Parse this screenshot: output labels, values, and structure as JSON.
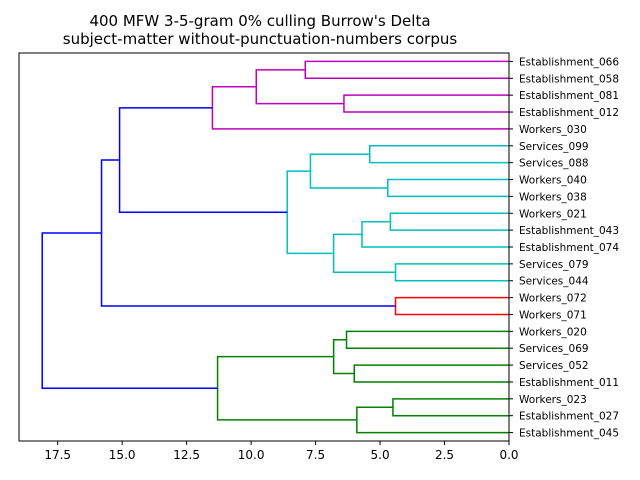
{
  "chart_data": {
    "type": "dendrogram",
    "title": "400 MFW 3-5-gram 0% culling Burrow's Delta",
    "subtitle": "subject-matter without-punctuation-numbers corpus",
    "orientation": "left",
    "xlim": [
      19,
      0
    ],
    "xticks": [
      17.5,
      15.0,
      12.5,
      10.0,
      7.5,
      5.0,
      2.5,
      0.0
    ],
    "xtick_labels": [
      "17.5",
      "15.0",
      "12.5",
      "10.0",
      "7.5",
      "5.0",
      "2.5",
      "0.0"
    ],
    "leaves": [
      "Establishment_066",
      "Establishment_058",
      "Establishment_081",
      "Establishment_012",
      "Workers_030",
      "Services_099",
      "Services_088",
      "Workers_040",
      "Workers_038",
      "Workers_021",
      "Establishment_043",
      "Establishment_074",
      "Services_079",
      "Services_044",
      "Workers_072",
      "Workers_071",
      "Workers_020",
      "Services_069",
      "Services_052",
      "Establishment_011",
      "Workers_023",
      "Establishment_027",
      "Establishment_045"
    ],
    "colors": {
      "magenta": "#bf00bf",
      "cyan": "#00bfbf",
      "red": "#ff0000",
      "green": "#008000",
      "blue": "#0000ff"
    },
    "links": [
      {
        "height": 7.9,
        "children": [
          "L0",
          "L1"
        ],
        "color": "magenta"
      },
      {
        "height": 6.4,
        "children": [
          "L2",
          "L3"
        ],
        "color": "magenta"
      },
      {
        "height": 9.8,
        "children": [
          0,
          1
        ],
        "color": "magenta"
      },
      {
        "height": 11.5,
        "children": [
          2,
          "L4"
        ],
        "color": "magenta"
      },
      {
        "height": 5.4,
        "children": [
          "L5",
          "L6"
        ],
        "color": "cyan"
      },
      {
        "height": 4.7,
        "children": [
          "L7",
          "L8"
        ],
        "color": "cyan"
      },
      {
        "height": 7.7,
        "children": [
          4,
          5
        ],
        "color": "cyan"
      },
      {
        "height": 4.6,
        "children": [
          "L9",
          "L10"
        ],
        "color": "cyan"
      },
      {
        "height": 5.7,
        "children": [
          7,
          "L11"
        ],
        "color": "cyan"
      },
      {
        "height": 4.4,
        "children": [
          "L12",
          "L13"
        ],
        "color": "cyan"
      },
      {
        "height": 6.8,
        "children": [
          8,
          9
        ],
        "color": "cyan"
      },
      {
        "height": 8.6,
        "children": [
          6,
          10
        ],
        "color": "cyan"
      },
      {
        "height": 15.1,
        "children": [
          3,
          11
        ],
        "color": "blue"
      },
      {
        "height": 4.4,
        "children": [
          "L14",
          "L15"
        ],
        "color": "red"
      },
      {
        "height": 15.8,
        "children": [
          12,
          13
        ],
        "color": "blue"
      },
      {
        "height": 6.3,
        "children": [
          "L16",
          "L17"
        ],
        "color": "green"
      },
      {
        "height": 6.0,
        "children": [
          "L18",
          "L19"
        ],
        "color": "green"
      },
      {
        "height": 6.8,
        "children": [
          15,
          16
        ],
        "color": "green"
      },
      {
        "height": 4.5,
        "children": [
          "L20",
          "L21"
        ],
        "color": "green"
      },
      {
        "height": 5.9,
        "children": [
          18,
          "L22"
        ],
        "color": "green"
      },
      {
        "height": 11.3,
        "children": [
          17,
          19
        ],
        "color": "green"
      },
      {
        "height": 18.1,
        "children": [
          14,
          20
        ],
        "color": "blue"
      }
    ]
  }
}
